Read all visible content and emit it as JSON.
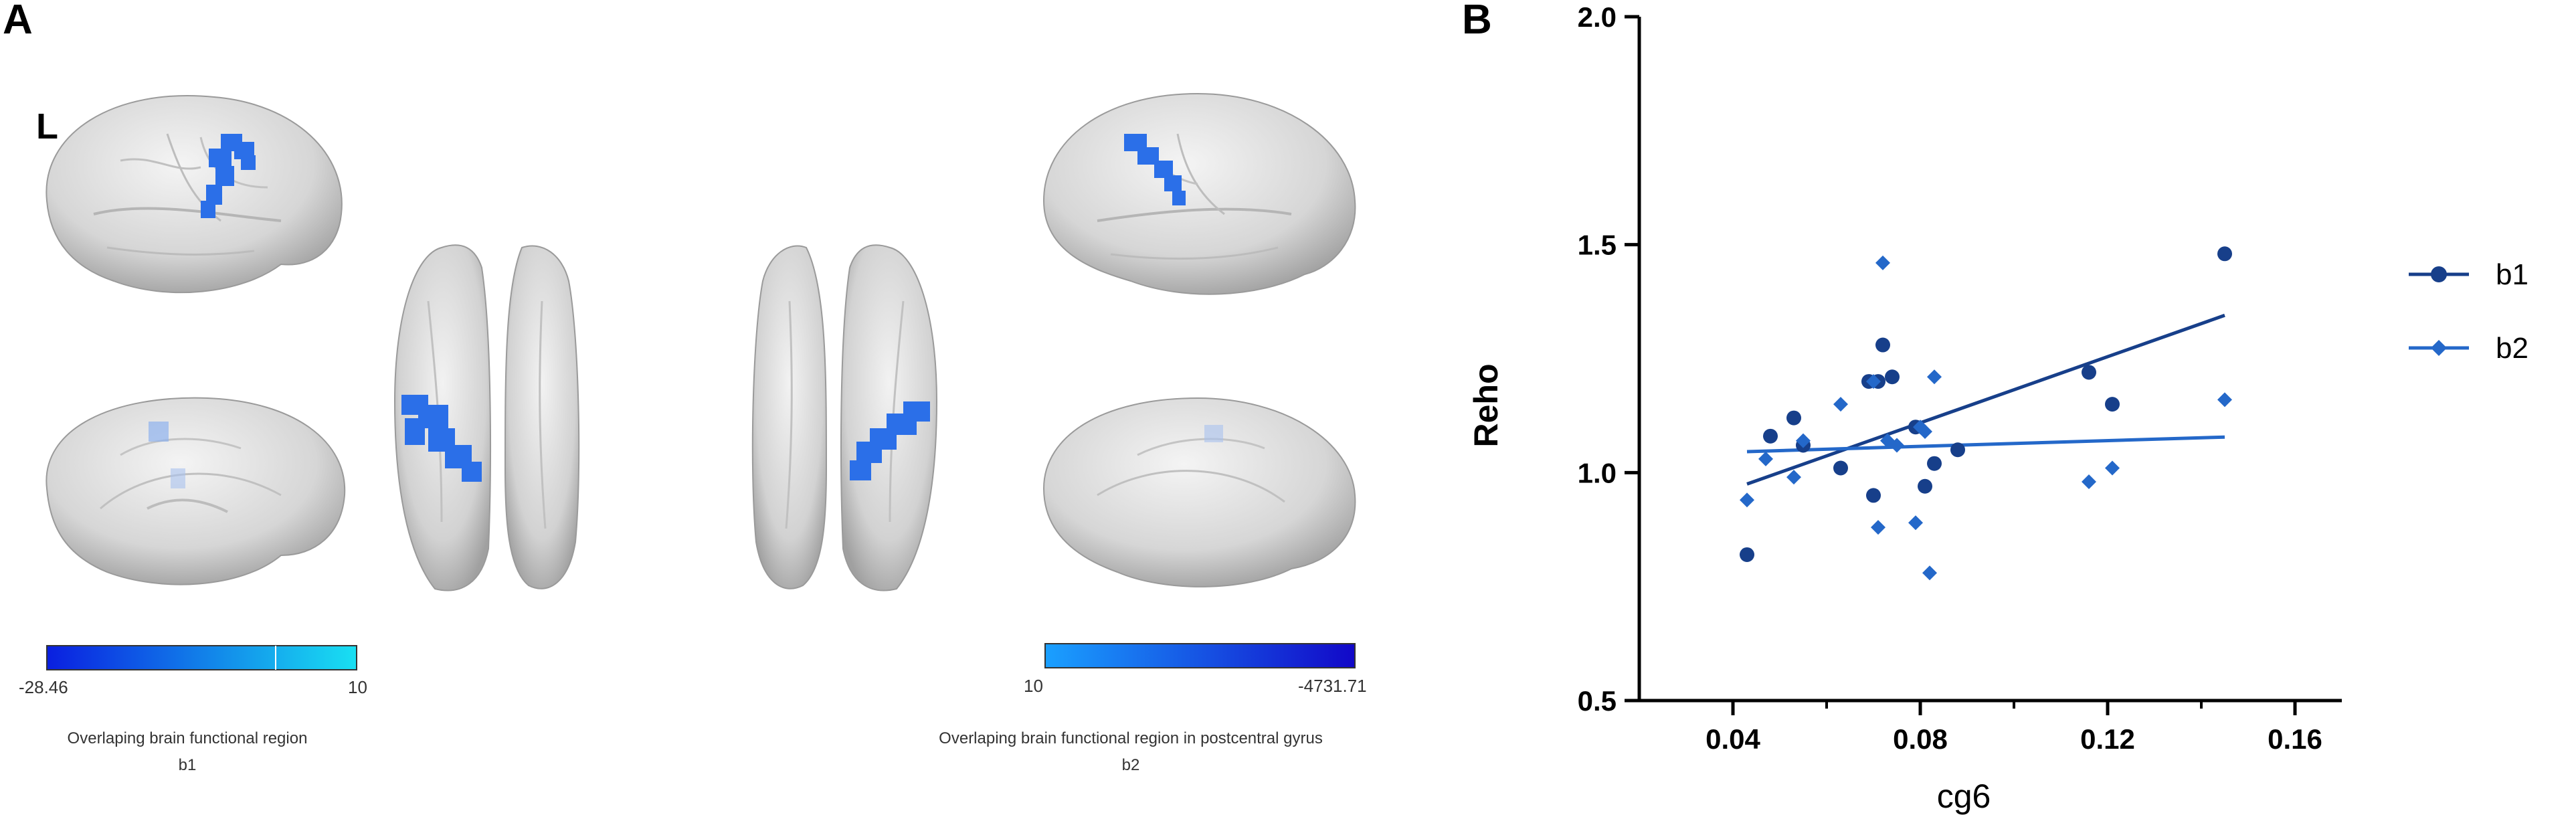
{
  "panel_a": {
    "letter": "A",
    "hemisphere_label": "L",
    "colorbar_b1": {
      "min_label": "-28.46",
      "max_label": "10",
      "from_color": "#0a1fe0",
      "to_color": "#19e0f2"
    },
    "colorbar_b2": {
      "min_label": "10",
      "max_label": "-4731.71",
      "from_color": "#1aa0ff",
      "to_color": "#1208c8"
    },
    "caption_b1": {
      "line1": "Overlaping brain  functional region",
      "line2": "b1"
    },
    "caption_b2": {
      "line1": "Overlaping brain  functional region in postcentral gyrus",
      "line2": "b2"
    },
    "cortex_color": "#d9d9d9",
    "highlight_color": "#2b6fe8"
  },
  "panel_b": {
    "letter": "B"
  },
  "chart_data": {
    "type": "scatter",
    "xlabel": "cg6",
    "ylabel": "Reho",
    "xlim": [
      0.02,
      0.17
    ],
    "ylim": [
      0.5,
      2.0
    ],
    "x_ticks": [
      "0.04",
      "0.08",
      "0.12",
      "0.16"
    ],
    "y_ticks": [
      "0.5",
      "1.0",
      "1.5",
      "2.0"
    ],
    "legend_position": "right",
    "series": [
      {
        "name": "b1",
        "marker": "circle",
        "color": "#173f8a",
        "x": [
          0.043,
          0.048,
          0.053,
          0.055,
          0.063,
          0.069,
          0.07,
          0.071,
          0.072,
          0.074,
          0.079,
          0.081,
          0.083,
          0.088,
          0.116,
          0.121,
          0.145
        ],
        "y": [
          0.82,
          1.08,
          1.12,
          1.06,
          1.01,
          1.2,
          0.95,
          1.2,
          1.28,
          1.21,
          1.1,
          0.97,
          1.02,
          1.05,
          1.22,
          1.15,
          1.48
        ],
        "fit": [
          [
            0.043,
            0.975
          ],
          [
            0.145,
            1.345
          ]
        ]
      },
      {
        "name": "b2",
        "marker": "diamond",
        "color": "#2468c9",
        "x": [
          0.043,
          0.047,
          0.053,
          0.055,
          0.063,
          0.07,
          0.071,
          0.072,
          0.073,
          0.075,
          0.079,
          0.08,
          0.081,
          0.082,
          0.083,
          0.116,
          0.121,
          0.145
        ],
        "y": [
          0.94,
          1.03,
          0.99,
          1.07,
          1.15,
          1.2,
          0.88,
          1.46,
          1.07,
          1.06,
          0.89,
          1.1,
          1.09,
          0.78,
          1.21,
          0.98,
          1.01,
          1.16
        ],
        "fit": [
          [
            0.043,
            1.046
          ],
          [
            0.145,
            1.078
          ]
        ]
      }
    ]
  }
}
